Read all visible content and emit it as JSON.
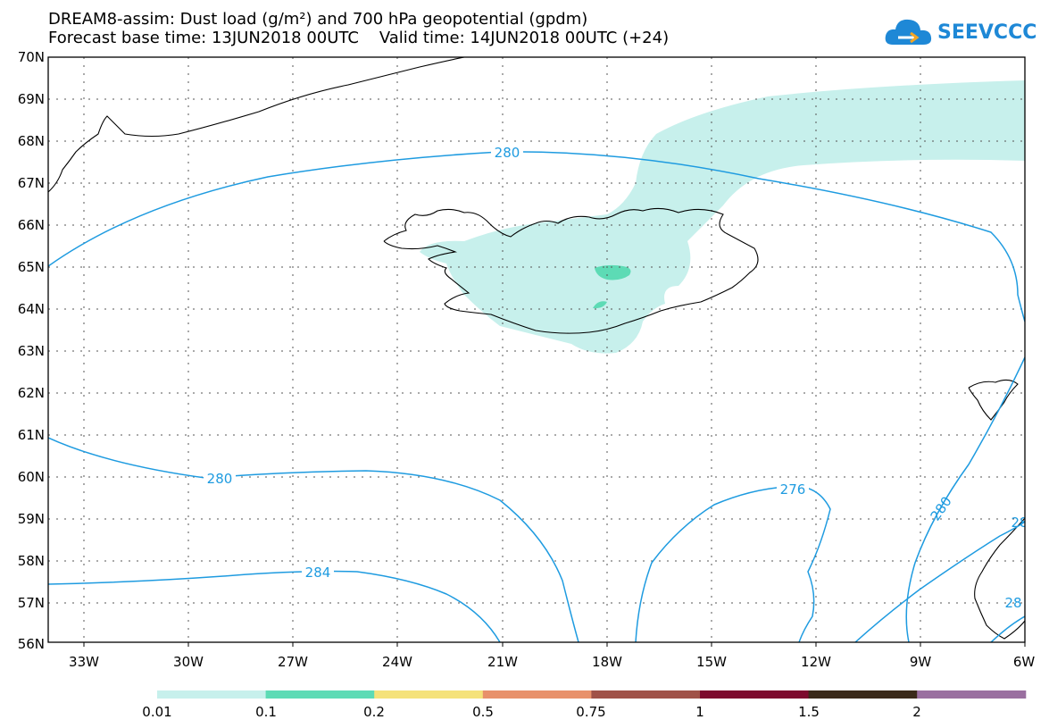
{
  "title_line1": "DREAM8-assim: Dust load (g/m²) and 700 hPa geopotential (gpdm)",
  "title_line2": "Forecast base time: 13JUN2018 00UTC    Valid time: 14JUN2018 00UTC (+24)",
  "logo_text": "SEEVCCC",
  "lat_labels": [
    "70N",
    "69N",
    "68N",
    "67N",
    "66N",
    "65N",
    "64N",
    "63N",
    "62N",
    "61N",
    "60N",
    "59N",
    "58N",
    "57N",
    "56N"
  ],
  "lon_labels": [
    "33W",
    "30W",
    "27W",
    "24W",
    "21W",
    "18W",
    "15W",
    "12W",
    "9W",
    "6W"
  ],
  "contour_labels": {
    "c280_north": "280",
    "c280_south": "280",
    "c284": "284",
    "c276": "276",
    "c280_east": "280",
    "c28_edge": "28",
    "c28_edge2": "28"
  },
  "colorbar": {
    "labels": [
      "0.01",
      "0.1",
      "0.2",
      "0.5",
      "0.75",
      "1",
      "1.5",
      "2"
    ],
    "colors": [
      "#c7f0ec",
      "#5ddbb5",
      "#f5e27a",
      "#e8916b",
      "#a05248",
      "#7d0a2e",
      "#3b2a1a",
      "#9a6fa0"
    ]
  },
  "colors": {
    "contour": "#1e9be0",
    "coast": "#000000",
    "dust_low": "#c7f0ec",
    "dust_mid": "#5ddbb5"
  }
}
